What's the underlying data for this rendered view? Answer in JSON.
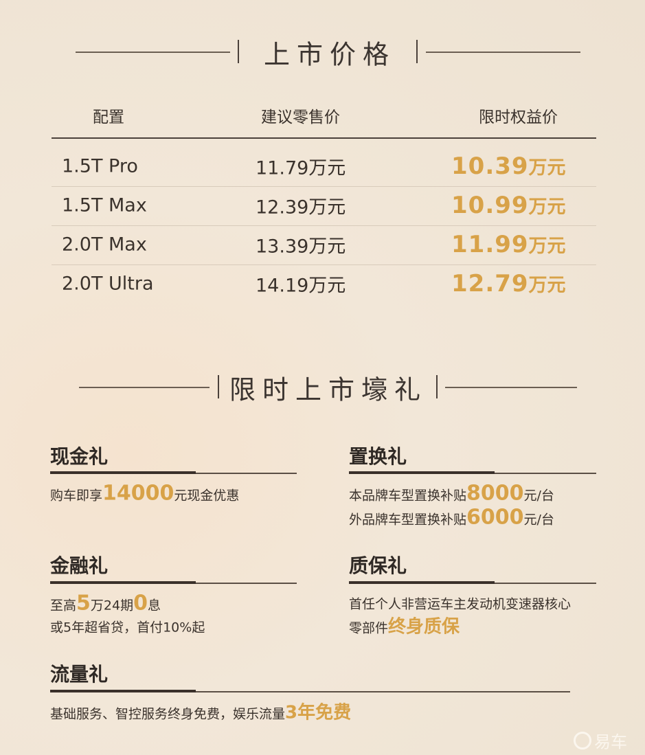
{
  "price_section": {
    "title": "上市价格",
    "headers": [
      "配置",
      "建议零售价",
      "限时权益价"
    ],
    "rows": [
      {
        "config": "1.5T Pro",
        "msrp": "11.79万元",
        "promo": "10.39",
        "unit": "万元"
      },
      {
        "config": "1.5T Max",
        "msrp": "12.39万元",
        "promo": "10.99",
        "unit": "万元"
      },
      {
        "config": "2.0T Max",
        "msrp": "13.39万元",
        "promo": "11.99",
        "unit": "万元"
      },
      {
        "config": "2.0T Ultra",
        "msrp": "14.19万元",
        "promo": "12.79",
        "unit": "万元"
      }
    ]
  },
  "gift_section": {
    "title": "限时上市壕礼",
    "cash": {
      "title": "现金礼",
      "l1": [
        "购车即享",
        "14000",
        "元现金优惠"
      ]
    },
    "tradein": {
      "title": "置换礼",
      "l1": [
        "本品牌车型置换补贴",
        "8000",
        "元/台"
      ],
      "l2": [
        "外品牌车型置换补贴",
        "6000",
        "元/台"
      ]
    },
    "finance": {
      "title": "金融礼",
      "l1": [
        "至高",
        "5",
        "万24期",
        "0",
        "息"
      ],
      "l2": "或5年超省贷，首付10%起"
    },
    "warranty": {
      "title": "质保礼",
      "l1": "首任个人非营运车主发动机变速器核心",
      "l2": [
        "零部件",
        "终身质保"
      ]
    },
    "data": {
      "title": "流量礼",
      "l1": [
        "基础服务、智控服务终身免费，娱乐流量",
        "3年免费"
      ]
    }
  },
  "watermark": {
    "text": "易车",
    "icon": "yiche-logo-icon"
  },
  "colors": {
    "accent": "#d8a248",
    "text": "#3a322c",
    "background": "#f2e7d8"
  }
}
